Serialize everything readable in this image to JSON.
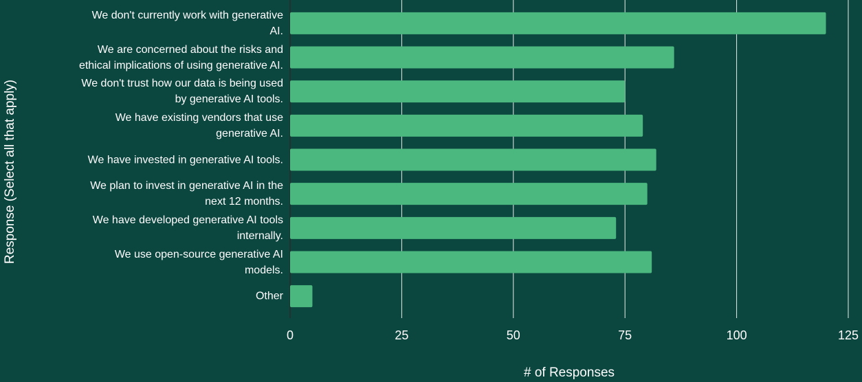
{
  "chart_data": {
    "type": "barh",
    "categories": [
      "We don't currently work with generative\nAI.",
      "We are concerned about the risks and\nethical implications of using generative AI.",
      "We don't trust how our data is being used\nby generative AI tools.",
      "We have existing vendors that use\ngenerative AI.",
      "We have invested in generative AI tools.",
      "We plan to invest in generative AI in the\nnext 12 months.",
      "We have developed generative AI tools\ninternally.",
      "We use open-source generative AI\nmodels.",
      "Other"
    ],
    "values": [
      120,
      86,
      75,
      79,
      82,
      80,
      73,
      81,
      5
    ],
    "color": "#4bb87f",
    "xlim": [
      0,
      125
    ],
    "xticks": [
      0,
      25,
      50,
      75,
      100,
      125
    ],
    "grid": true,
    "xlabel": "# of Responses",
    "ylabel": "Response (Select all that apply)"
  }
}
